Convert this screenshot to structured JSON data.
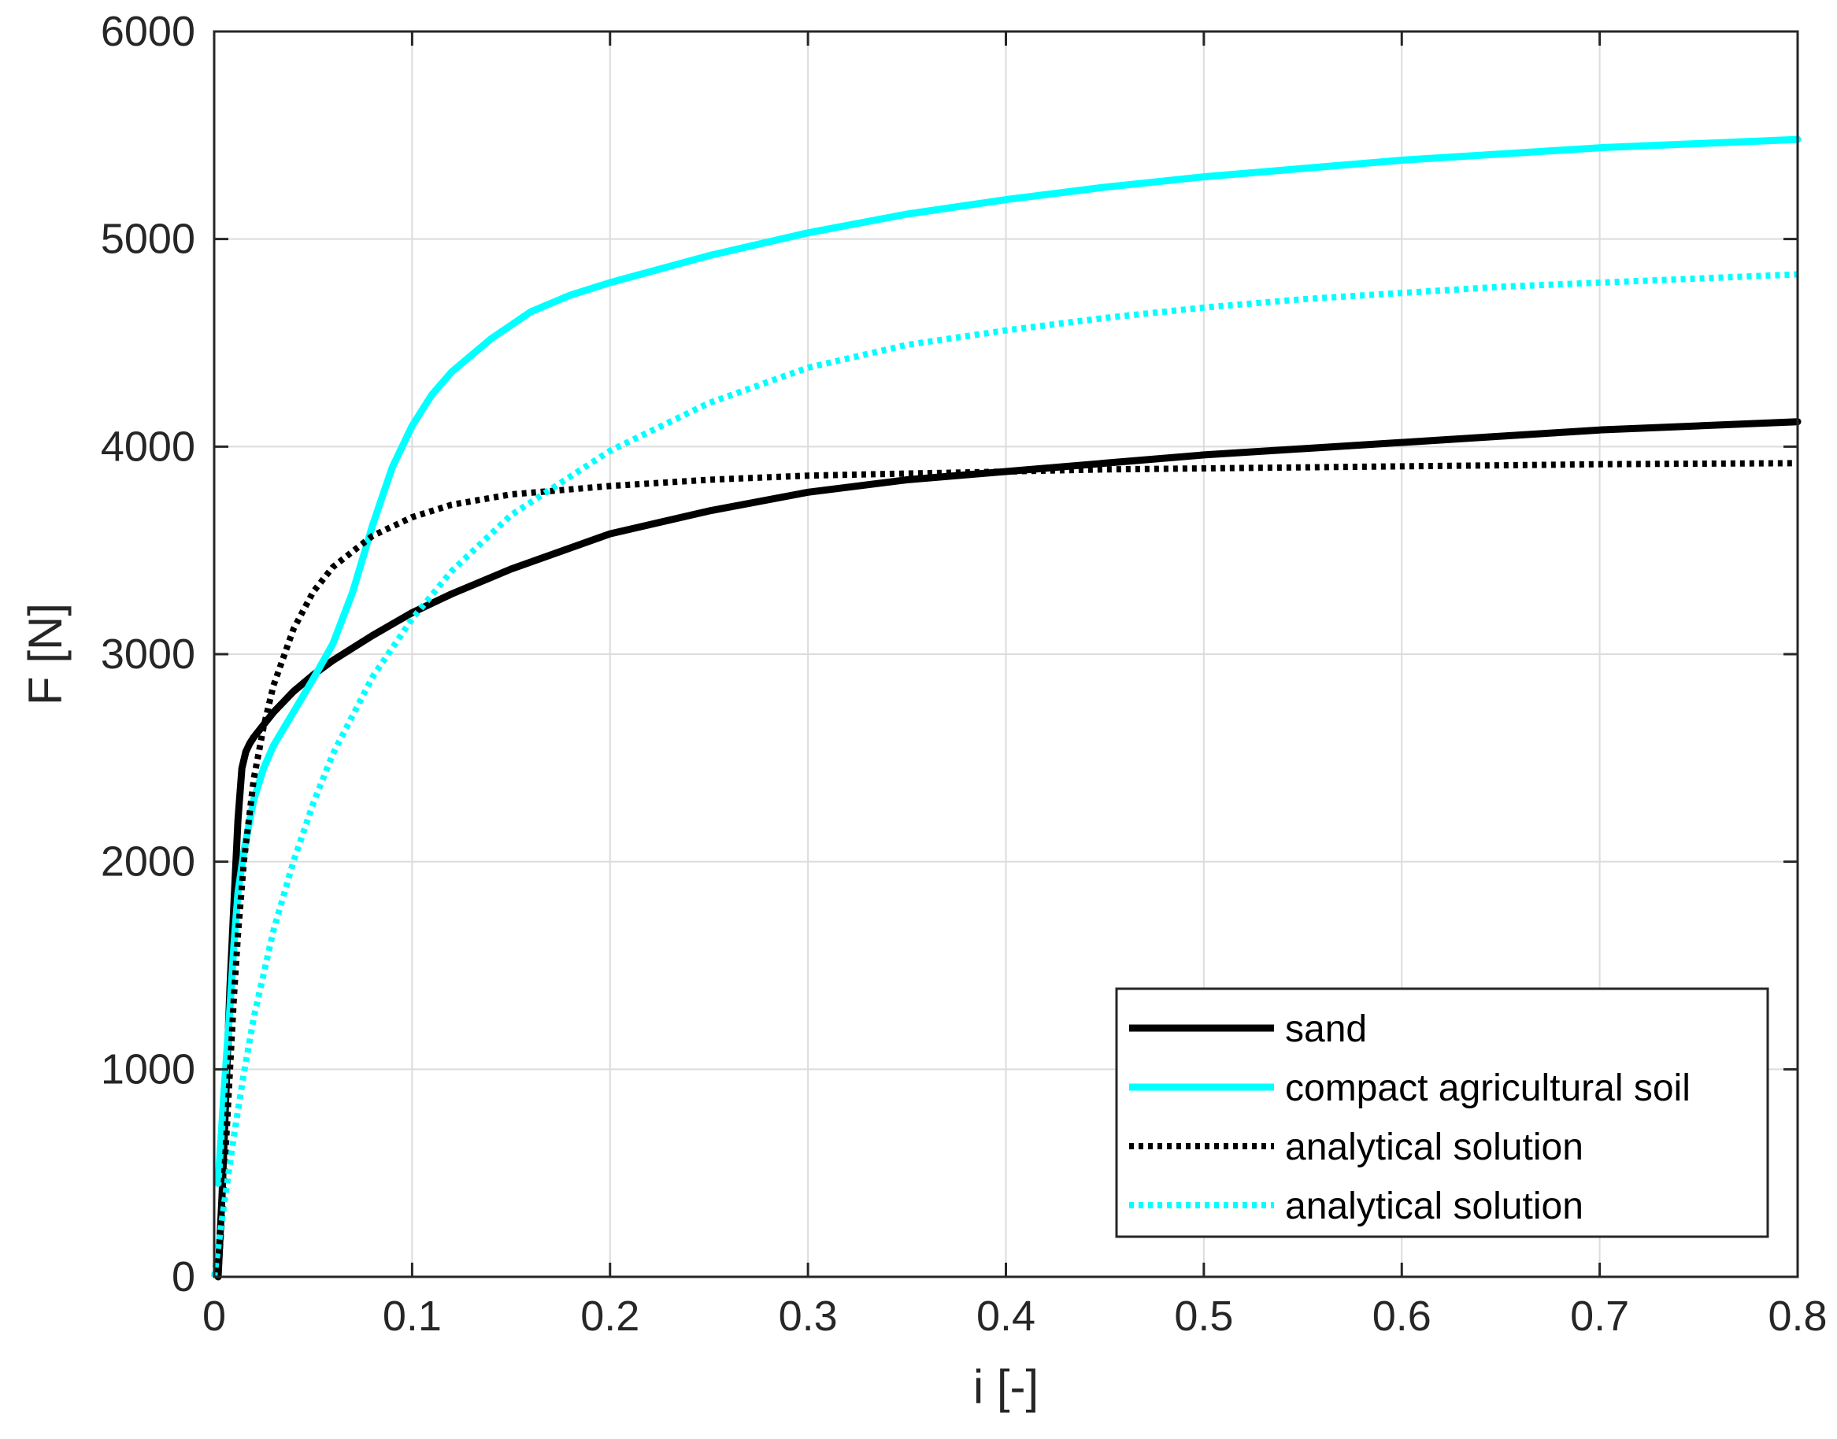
{
  "chart_data": {
    "type": "line",
    "xlabel": "i [-]",
    "ylabel": "F [N]",
    "xlim": [
      0,
      0.8
    ],
    "ylim": [
      0,
      6000
    ],
    "xticks": [
      0,
      0.1,
      0.2,
      0.3,
      0.4,
      0.5,
      0.6,
      0.7,
      0.8
    ],
    "yticks": [
      0,
      1000,
      2000,
      3000,
      4000,
      5000,
      6000
    ],
    "xtick_labels": [
      "0",
      "0.1",
      "0.2",
      "0.3",
      "0.4",
      "0.5",
      "0.6",
      "0.7",
      "0.8"
    ],
    "ytick_labels": [
      "0",
      "1000",
      "2000",
      "3000",
      "4000",
      "5000",
      "6000"
    ],
    "grid": true,
    "legend_position": "bottom-right",
    "series": [
      {
        "name": "sand",
        "color": "#000000",
        "style": "solid",
        "x": [
          0.002,
          0.004,
          0.006,
          0.008,
          0.01,
          0.012,
          0.014,
          0.016,
          0.018,
          0.02,
          0.025,
          0.03,
          0.04,
          0.05,
          0.06,
          0.07,
          0.08,
          0.1,
          0.12,
          0.15,
          0.2,
          0.25,
          0.3,
          0.35,
          0.4,
          0.45,
          0.5,
          0.55,
          0.6,
          0.65,
          0.7,
          0.75,
          0.8
        ],
        "y": [
          0,
          400,
          900,
          1400,
          1800,
          2200,
          2450,
          2530,
          2570,
          2600,
          2660,
          2720,
          2820,
          2900,
          2970,
          3030,
          3090,
          3200,
          3290,
          3410,
          3580,
          3690,
          3780,
          3840,
          3880,
          3920,
          3960,
          3990,
          4020,
          4050,
          4080,
          4100,
          4120
        ]
      },
      {
        "name": "compact agricultural soil",
        "color": "#00ffff",
        "style": "solid",
        "x": [
          0.002,
          0.005,
          0.008,
          0.01,
          0.012,
          0.015,
          0.02,
          0.025,
          0.03,
          0.04,
          0.05,
          0.06,
          0.07,
          0.08,
          0.09,
          0.1,
          0.11,
          0.12,
          0.14,
          0.16,
          0.18,
          0.2,
          0.25,
          0.3,
          0.35,
          0.4,
          0.45,
          0.5,
          0.55,
          0.6,
          0.65,
          0.7,
          0.75,
          0.8
        ],
        "y": [
          450,
          900,
          1300,
          1600,
          1850,
          2050,
          2300,
          2450,
          2560,
          2720,
          2880,
          3050,
          3300,
          3620,
          3900,
          4100,
          4250,
          4360,
          4520,
          4650,
          4730,
          4790,
          4920,
          5030,
          5120,
          5190,
          5250,
          5300,
          5340,
          5380,
          5410,
          5440,
          5460,
          5480
        ]
      },
      {
        "name": "analytical solution",
        "color": "#000000",
        "style": "dotted",
        "x": [
          0.002,
          0.004,
          0.006,
          0.008,
          0.01,
          0.012,
          0.015,
          0.02,
          0.025,
          0.03,
          0.04,
          0.05,
          0.06,
          0.08,
          0.1,
          0.12,
          0.15,
          0.2,
          0.25,
          0.3,
          0.35,
          0.4,
          0.45,
          0.5,
          0.55,
          0.6,
          0.65,
          0.7,
          0.75,
          0.8
        ],
        "y": [
          0,
          300,
          650,
          1000,
          1350,
          1650,
          2000,
          2400,
          2650,
          2850,
          3120,
          3300,
          3420,
          3570,
          3660,
          3720,
          3770,
          3810,
          3840,
          3860,
          3870,
          3880,
          3890,
          3895,
          3900,
          3905,
          3910,
          3915,
          3918,
          3920
        ]
      },
      {
        "name": "analytical solution",
        "color": "#00ffff",
        "style": "dotted",
        "x": [
          0.0,
          0.005,
          0.01,
          0.015,
          0.02,
          0.03,
          0.04,
          0.05,
          0.06,
          0.08,
          0.1,
          0.12,
          0.15,
          0.2,
          0.25,
          0.3,
          0.35,
          0.4,
          0.45,
          0.5,
          0.55,
          0.6,
          0.65,
          0.7,
          0.75,
          0.8
        ],
        "y": [
          0,
          350,
          680,
          980,
          1250,
          1670,
          2000,
          2280,
          2520,
          2890,
          3170,
          3400,
          3670,
          3980,
          4210,
          4380,
          4490,
          4560,
          4620,
          4670,
          4710,
          4740,
          4770,
          4790,
          4810,
          4830
        ]
      }
    ]
  }
}
